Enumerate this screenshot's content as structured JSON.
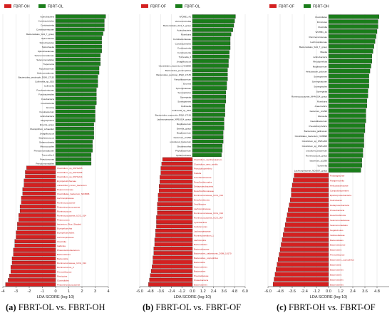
{
  "colors": {
    "pos": "#1a7d1a",
    "neg": "#d42020",
    "label_pos": "#1a1a1a",
    "label_neg": "#cc1a1a"
  },
  "captions": [
    {
      "letter": "(a)",
      "text": "FBRT-OL vs. FBRT-OH"
    },
    {
      "letter": "(b)",
      "text": "FBRT-OL vs. FBRT-OF"
    },
    {
      "letter": "(c)",
      "text": "FBRT-OH vs. FBRT-OF"
    }
  ],
  "chart_data": [
    {
      "type": "bar",
      "legend": [
        {
          "name": "FBRT-OH",
          "color": "#d42020"
        },
        {
          "name": "FBRT-OL",
          "color": "#1a7d1a"
        }
      ],
      "xlabel": "LDA SCORE (log 10)",
      "xlim": [
        -4,
        4
      ],
      "xticks": [
        "-4",
        "-3",
        "-2",
        "-1",
        "0",
        "1",
        "2",
        "3",
        "4"
      ],
      "categories": [
        "Actinobacteria",
        "Coriobacteriales",
        "Coriobacteriia",
        "Coriobacteriaceae",
        "Bacteroidales_S24_7_group",
        "Spirochaetes",
        "Spirochaetales",
        "Spirochaetia",
        "Spirochaetaceae",
        "Selenomonadaceae",
        "Selenomonadales",
        "Treponema",
        "Mycobacterium",
        "Halomonadaceae",
        "Bacteroides_pectinoph_DSM_17135",
        "Collinsella_sp_SD3",
        "Collinsella",
        "Fusobacteriaceae",
        "Fusobacteriales",
        "Fusobacteria",
        "Fusobacteriia",
        "Enorma",
        "Fusobacterium",
        "Actinobacteria",
        "Megasphaera",
        "Emerita_group",
        "Mucispirillum_schaedleri",
        "Jeotgalicoccus",
        "Staphylococcus",
        "Sphaerochaeta",
        "Micrococcales",
        "Pseudomonadaceae",
        "Tyzzerella_3",
        "Pseudomonas",
        "Pseudomonadales",
        "Clostridium_sp_KNHs205",
        "Clostridium_sp_KNHs206",
        "Clostridium_sp_KNHs214",
        "Erysipelotrichaceae",
        "unidentified_rumen_bacterium",
        "Peptococcaceae",
        "Clostridiales_bacterium_NK3B98",
        "Lachnospiraceae",
        "Ruminococcaceae",
        "Peptostreptococcaceae",
        "Ruminococcus",
        "Ruminococcaceae_UCG_014",
        "Peptococcus",
        "bacterium_Rice_Shaded",
        "Erysipelotrichia",
        "Erysipelotrichales",
        "Lachnospiraceae",
        "Clostridia",
        "Gallicola",
        "Phascolarctobacterium",
        "Bacteroidetes",
        "Bacteroidia",
        "Ruminococcaceae_UCG_014",
        "Ruminococcus_2",
        "Prevotellaceae",
        "Firmicutes",
        "Clostridiales",
        "Peptostreptococcaceae"
      ],
      "values": [
        3.8,
        3.7,
        3.7,
        3.7,
        3.6,
        3.5,
        3.5,
        3.5,
        3.5,
        3.4,
        3.4,
        3.4,
        3.3,
        3.3,
        3.2,
        3.2,
        3.2,
        3.1,
        3.1,
        3.1,
        3.1,
        3.0,
        3.0,
        3.0,
        3.0,
        2.9,
        2.9,
        2.9,
        2.9,
        2.8,
        2.8,
        2.8,
        2.7,
        2.7,
        2.7,
        -2.2,
        -2.3,
        -2.3,
        -2.4,
        -2.4,
        -2.5,
        -2.5,
        -2.6,
        -2.6,
        -2.7,
        -2.7,
        -2.8,
        -2.8,
        -2.9,
        -2.9,
        -3.0,
        -3.0,
        -3.1,
        -3.1,
        -3.2,
        -3.2,
        -3.3,
        -3.3,
        -3.4,
        -3.4,
        -3.5,
        -3.6,
        -3.8
      ]
    },
    {
      "type": "bar",
      "legend": [
        {
          "name": "FBRT-OF",
          "color": "#d42020"
        },
        {
          "name": "FBRT-OL",
          "color": "#1a7d1a"
        }
      ],
      "xlabel": "LDA SCORE (log 10)",
      "xlim": [
        -6,
        6
      ],
      "xticks": [
        "-6.0",
        "-4.8",
        "-3.6",
        "-2.4",
        "-1.2",
        "0.0",
        "1.2",
        "2.4",
        "3.6",
        "4.8",
        "6.0"
      ],
      "categories": [
        "WCHB1_41",
        "Verrucomicrobia",
        "Bacteroidales_S24_7_group",
        "Actinobacteria",
        "Roseburia",
        "Coriobacteriaceae",
        "Coriobacteriales",
        "Coriobacteriia",
        "Coriobacteriia",
        "Tyzzerella_3",
        "Jeotgalicoccus",
        "Clostridiales_bacterium_NK3B98",
        "Bacteroides_pectinophilus",
        "Bacteroides_pectinop_DSM_17135",
        "Faecalibacterium",
        "Enorma",
        "Synergistaceae",
        "Synergistales",
        "Synergistia",
        "Synergistetes",
        "Collinsella",
        "Collinsella_sp_SD3",
        "Bacteroides_coprocola_DSM_17136",
        "Lachnospiraceae_XPB1014_group",
        "Mogibacterium",
        "Emerita_group",
        "Mogibacterium",
        "bacterium_ic1296",
        "uncultured_bacterium",
        "Shuttleworthia",
        "Phyllobacterium",
        "Sphaerochaeta",
        "Clostridium_saccharolyticum",
        "Clostridium_aero_similis",
        "Pseudobutyrivibrio",
        "Hallella",
        "Fusobacteriaceae",
        "Desulfovibrionales",
        "Deltaproteobacteria",
        "Desulfovibrionaceae",
        "Ruminococcaceae_UCG_014",
        "Desulfovibrionia",
        "Oscillibacter",
        "Lachnospiraceae",
        "Ruminococcaceae_UCG_014",
        "Ruminococcaceae_UCG_007",
        "Lysinibacillus",
        "Cellulomonas",
        "Lachnospiraceae",
        "Ruminiclostridium_1",
        "Lachnospira",
        "Bacteroidales",
        "Bacteroidaceae",
        "Bacteroides_salanitronis_DSM_18170",
        "Bacteroides_coprophilus",
        "Bacteroidia",
        "Bacteroidetes",
        "Bacteroides",
        "Prevotellaceae",
        "Proteobacteria",
        "Bacteroidetes"
      ],
      "values": [
        4.9,
        4.8,
        4.7,
        4.6,
        4.4,
        4.3,
        4.3,
        4.3,
        4.2,
        4.2,
        4.1,
        4.1,
        4.0,
        4.0,
        4.0,
        3.9,
        3.9,
        3.8,
        3.8,
        3.8,
        3.7,
        3.7,
        3.7,
        3.6,
        3.6,
        3.6,
        3.5,
        3.5,
        3.5,
        3.4,
        3.4,
        3.3,
        -3.4,
        -3.5,
        -3.6,
        -3.6,
        -3.7,
        -3.7,
        -3.8,
        -3.8,
        -3.9,
        -3.9,
        -4.0,
        -4.0,
        -4.0,
        -4.1,
        -4.1,
        -4.1,
        -4.2,
        -4.2,
        -4.3,
        -4.3,
        -4.4,
        -4.4,
        -4.5,
        -4.5,
        -4.6,
        -4.7,
        -4.8,
        -4.9,
        -5.0
      ]
    },
    {
      "type": "bar",
      "legend": [
        {
          "name": "FBRT-OF",
          "color": "#d42020"
        },
        {
          "name": "FBRT-OH",
          "color": "#1a7d1a"
        }
      ],
      "xlabel": "LDA SCORE (log 10)",
      "xlim": [
        -6,
        6
      ],
      "xticks": [
        "-6.0",
        "-4.8",
        "-3.6",
        "-2.4",
        "-1.2",
        "0.0",
        "1.2",
        "2.4",
        "3.6",
        "4.8"
      ],
      "categories": [
        "Clostridiales",
        "Firmicutes",
        "Clostridia",
        "WCHB1_41",
        "Ruminococcaceae",
        "Lachnospiraceae",
        "Bacteroidales_S24_7_group",
        "Blautia",
        "Actinobacteria",
        "Rhodopirellula",
        "Mogibacterium",
        "Helicobacter_pylorum",
        "Synergistetes",
        "Synergistaceae",
        "Synergistales",
        "Synergistia",
        "Ruminococcaceae_NK4A214_group",
        "Roseburia",
        "Anaerovibrio",
        "bacterium_ic1296",
        "Weissella",
        "Faecalibacterium",
        "Pseudobutyrivibrio",
        "Bacteroides_gallinarum",
        "Clostridiales_bacterium_NK3B98",
        "Clostridium_sp_KNHs206",
        "Clostridium_sp_KNHs205",
        "uncultured_bacterium",
        "Ruminococcus_group",
        "bacterium_ic1296",
        "Tyzzerella",
        "Lachnospiraceae_ND3007_group",
        "Polyangiaceae",
        "Paraprevotella",
        "Helicobacteraceae",
        "Campylobacterales",
        "Epsilonproteobacteria",
        "Helicobacter",
        "Deltaproteobacteria",
        "Proteobacteria",
        "Desulfovibrionia",
        "Selenomonadaceae",
        "Selenomonadales",
        "Negativicutes",
        "Veillonellaceae",
        "Bacteroidales",
        "Bacteroidaceae",
        "Bacteroides",
        "Prevotellaceae",
        "Bacteroides_coprophilus",
        "Bacteroidia",
        "Bacteroidetes",
        "Bacteroides",
        "Bacteroidales",
        "Bacteroidetes"
      ],
      "values": [
        5.0,
        4.9,
        4.9,
        4.8,
        4.7,
        4.6,
        4.5,
        4.4,
        4.3,
        4.3,
        4.2,
        4.1,
        4.0,
        4.0,
        4.0,
        3.9,
        3.9,
        3.8,
        3.8,
        3.7,
        3.7,
        3.7,
        3.6,
        3.6,
        3.5,
        3.5,
        3.5,
        3.4,
        3.4,
        3.3,
        3.3,
        3.2,
        -3.4,
        -3.5,
        -3.6,
        -3.7,
        -3.7,
        -3.8,
        -3.9,
        -4.0,
        -4.1,
        -4.2,
        -4.3,
        -4.4,
        -4.5,
        -4.6,
        -4.7,
        -4.8,
        -4.9,
        -5.0,
        -5.1,
        -5.2,
        -5.3,
        -5.4,
        -5.5
      ]
    }
  ]
}
